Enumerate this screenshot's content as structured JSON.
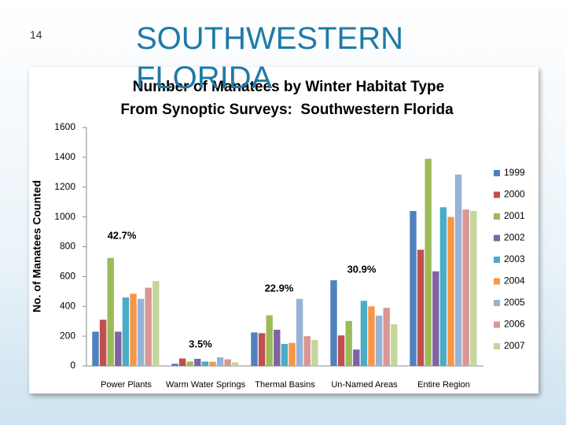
{
  "slide_number": "14",
  "slide_title": "SOUTHWESTERN FLORIDA",
  "chart_data": {
    "type": "bar",
    "title": [
      "Number of Manatees by Winter Habitat Type",
      "From Synoptic Surveys:  Southwestern Florida"
    ],
    "y_label": "No. of Manatees Counted",
    "categories": [
      "Power Plants",
      "Warm Water Springs",
      "Thermal Basins",
      "Un-Named Areas",
      "Entire Region"
    ],
    "series": [
      {
        "name": "1999",
        "color": "#4f81bd",
        "values": [
          230,
          15,
          225,
          575,
          1040
        ]
      },
      {
        "name": "2000",
        "color": "#c0504d",
        "values": [
          310,
          50,
          220,
          205,
          780
        ]
      },
      {
        "name": "2001",
        "color": "#9bbb59",
        "values": [
          725,
          30,
          340,
          302,
          1390
        ]
      },
      {
        "name": "2002",
        "color": "#8064a2",
        "values": [
          230,
          48,
          243,
          110,
          635
        ]
      },
      {
        "name": "2003",
        "color": "#4bacc6",
        "values": [
          460,
          30,
          148,
          437,
          1065
        ]
      },
      {
        "name": "2004",
        "color": "#f79646",
        "values": [
          485,
          28,
          155,
          400,
          1000
        ]
      },
      {
        "name": "2005",
        "color": "#95b3d7",
        "values": [
          450,
          58,
          450,
          338,
          1285
        ]
      },
      {
        "name": "2006",
        "color": "#d99694",
        "values": [
          525,
          45,
          200,
          390,
          1050
        ]
      },
      {
        "name": "2007",
        "color": "#c3d69b",
        "values": [
          570,
          25,
          175,
          280,
          1040
        ]
      }
    ],
    "annotations": [
      "42.7%",
      "3.5%",
      "22.9%",
      "30.9%"
    ],
    "ylim": [
      0,
      1600
    ],
    "yticks": [
      0,
      200,
      400,
      600,
      800,
      1000,
      1200,
      1400,
      1600
    ],
    "grid": false,
    "legend": "right"
  }
}
